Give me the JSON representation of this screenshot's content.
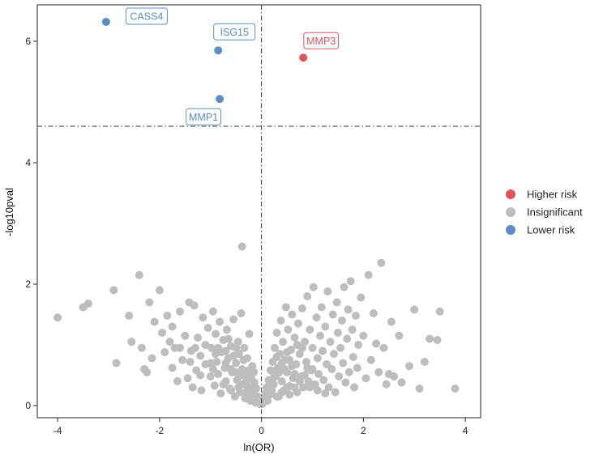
{
  "chart_data": {
    "type": "scatter",
    "title": "",
    "xlabel": "ln(OR)",
    "ylabel": "-log10pval",
    "xlim": [
      -4.4,
      4.3
    ],
    "ylim": [
      -0.2,
      6.6
    ],
    "xticks": [
      -4,
      -2,
      0,
      2,
      4
    ],
    "yticks": [
      0,
      2,
      4,
      6
    ],
    "grid": false,
    "thresholds": {
      "x": 0,
      "y": 4.6
    },
    "colors": {
      "higher": "#e0535c",
      "insignificant": "#bdbdbd",
      "lower": "#5b8ec4"
    },
    "legend": {
      "position": "right",
      "entries": [
        {
          "label": "Higher risk",
          "group": "higher"
        },
        {
          "label": "Insignificant",
          "group": "insignificant"
        },
        {
          "label": "Lower risk",
          "group": "lower"
        }
      ]
    },
    "significant_points": [
      {
        "label": "CASS4",
        "x": -3.05,
        "y": 6.32,
        "group": "lower"
      },
      {
        "label": "ISG15",
        "x": -0.85,
        "y": 5.85,
        "group": "lower"
      },
      {
        "label": "MMP1",
        "x": -0.82,
        "y": 5.05,
        "group": "lower"
      },
      {
        "label": "MMP3",
        "x": 0.82,
        "y": 5.73,
        "group": "higher"
      }
    ],
    "insignificant_points": [
      [
        -4.0,
        1.45
      ],
      [
        -3.5,
        1.62
      ],
      [
        -3.4,
        1.68
      ],
      [
        -2.9,
        1.9
      ],
      [
        -2.85,
        0.7
      ],
      [
        -2.6,
        1.48
      ],
      [
        -2.55,
        1.05
      ],
      [
        -2.4,
        2.15
      ],
      [
        -2.35,
        0.95
      ],
      [
        -2.3,
        0.6
      ],
      [
        -2.25,
        0.55
      ],
      [
        -2.2,
        1.7
      ],
      [
        -2.15,
        0.78
      ],
      [
        -2.1,
        1.38
      ],
      [
        -2.0,
        1.9
      ],
      [
        -1.95,
        1.2
      ],
      [
        -1.9,
        0.88
      ],
      [
        -1.85,
        1.48
      ],
      [
        -1.8,
        1.05
      ],
      [
        -1.75,
        0.62
      ],
      [
        -1.7,
        0.95
      ],
      [
        -1.65,
        0.4
      ],
      [
        -1.6,
        1.55
      ],
      [
        -1.55,
        0.75
      ],
      [
        -1.5,
        1.15
      ],
      [
        -1.45,
        0.45
      ],
      [
        -1.42,
        1.7
      ],
      [
        -1.38,
        0.9
      ],
      [
        -1.35,
        0.3
      ],
      [
        -1.32,
        1.65
      ],
      [
        -1.28,
        0.58
      ],
      [
        -1.25,
        1.12
      ],
      [
        -1.2,
        0.82
      ],
      [
        -1.18,
        0.25
      ],
      [
        -1.15,
        1.45
      ],
      [
        -1.1,
        0.68
      ],
      [
        -1.05,
        1.28
      ],
      [
        -1.0,
        0.48
      ],
      [
        -0.98,
        0.95
      ],
      [
        -0.95,
        1.55
      ],
      [
        -0.92,
        0.33
      ],
      [
        -0.9,
        1.18
      ],
      [
        -0.88,
        0.72
      ],
      [
        -0.85,
        0.52
      ],
      [
        -0.82,
        1.38
      ],
      [
        -0.8,
        0.2
      ],
      [
        -0.78,
        0.88
      ],
      [
        -0.75,
        1.08
      ],
      [
        -0.72,
        0.62
      ],
      [
        -0.7,
        0.4
      ],
      [
        -0.68,
        1.25
      ],
      [
        -0.65,
        0.78
      ],
      [
        -0.62,
        0.28
      ],
      [
        -0.6,
        0.98
      ],
      [
        -0.58,
        0.55
      ],
      [
        -0.55,
        1.42
      ],
      [
        -0.52,
        0.15
      ],
      [
        -0.5,
        0.7
      ],
      [
        -0.48,
        0.42
      ],
      [
        -0.46,
        1.05
      ],
      [
        -0.44,
        0.85
      ],
      [
        -0.42,
        0.22
      ],
      [
        -0.4,
        1.52
      ],
      [
        -0.38,
        0.6
      ],
      [
        -0.36,
        0.35
      ],
      [
        -0.34,
        0.95
      ],
      [
        -0.32,
        0.12
      ],
      [
        -0.3,
        0.5
      ],
      [
        -0.28,
        0.78
      ],
      [
        -0.26,
        0.3
      ],
      [
        -0.24,
        1.18
      ],
      [
        -0.22,
        0.08
      ],
      [
        -0.2,
        0.45
      ],
      [
        -0.18,
        0.65
      ],
      [
        -0.16,
        0.2
      ],
      [
        -0.14,
        0.38
      ],
      [
        -0.12,
        0.05
      ],
      [
        -0.1,
        0.28
      ],
      [
        -0.08,
        0.15
      ],
      [
        -0.06,
        0.1
      ],
      [
        -0.04,
        0.04
      ],
      [
        -0.38,
        2.62
      ],
      [
        -0.02,
        0.02
      ],
      [
        -1.3,
        0.95
      ],
      [
        -1.1,
        1.0
      ],
      [
        -0.9,
        0.85
      ],
      [
        -0.7,
        0.9
      ],
      [
        -0.55,
        0.82
      ],
      [
        -0.65,
        1.1
      ],
      [
        -0.75,
        0.35
      ],
      [
        -0.6,
        0.25
      ],
      [
        -0.45,
        0.3
      ],
      [
        -0.5,
        0.95
      ],
      [
        -0.35,
        0.75
      ],
      [
        -0.3,
        0.22
      ],
      [
        -0.25,
        0.58
      ],
      [
        -0.2,
        0.3
      ],
      [
        -1.0,
        0.7
      ],
      [
        -0.85,
        0.95
      ],
      [
        -0.95,
        0.6
      ],
      [
        -1.2,
        0.5
      ],
      [
        -1.4,
        0.72
      ],
      [
        -1.6,
        0.95
      ],
      [
        -1.75,
        1.3
      ],
      [
        -0.7,
        0.7
      ],
      [
        -0.6,
        0.6
      ],
      [
        -0.5,
        0.55
      ],
      [
        -0.4,
        0.5
      ],
      [
        -0.3,
        0.4
      ],
      [
        -0.2,
        0.18
      ],
      [
        -0.15,
        0.55
      ],
      [
        0.02,
        0.03
      ],
      [
        0.04,
        0.06
      ],
      [
        0.06,
        0.12
      ],
      [
        0.08,
        0.2
      ],
      [
        0.1,
        0.3
      ],
      [
        0.12,
        0.08
      ],
      [
        0.14,
        0.42
      ],
      [
        0.16,
        0.18
      ],
      [
        0.18,
        0.58
      ],
      [
        0.2,
        0.25
      ],
      [
        0.22,
        0.72
      ],
      [
        0.24,
        0.35
      ],
      [
        0.26,
        0.95
      ],
      [
        0.28,
        0.48
      ],
      [
        0.3,
        1.2
      ],
      [
        0.32,
        0.62
      ],
      [
        0.34,
        0.15
      ],
      [
        0.36,
        0.85
      ],
      [
        0.38,
        1.4
      ],
      [
        0.4,
        0.4
      ],
      [
        0.42,
        1.05
      ],
      [
        0.44,
        0.25
      ],
      [
        0.46,
        0.75
      ],
      [
        0.48,
        1.62
      ],
      [
        0.5,
        0.55
      ],
      [
        0.52,
        1.25
      ],
      [
        0.55,
        0.32
      ],
      [
        0.58,
        0.92
      ],
      [
        0.6,
        1.5
      ],
      [
        0.62,
        0.45
      ],
      [
        0.65,
        1.12
      ],
      [
        0.68,
        0.68
      ],
      [
        0.7,
        0.22
      ],
      [
        0.72,
        1.35
      ],
      [
        0.75,
        0.85
      ],
      [
        0.78,
        0.48
      ],
      [
        0.8,
        1.6
      ],
      [
        0.82,
        0.3
      ],
      [
        0.85,
        1.05
      ],
      [
        0.88,
        0.72
      ],
      [
        0.9,
        1.8
      ],
      [
        0.92,
        0.4
      ],
      [
        0.95,
        1.25
      ],
      [
        0.98,
        0.58
      ],
      [
        1.0,
        0.95
      ],
      [
        1.02,
        1.95
      ],
      [
        1.05,
        0.35
      ],
      [
        1.08,
        1.45
      ],
      [
        1.1,
        0.78
      ],
      [
        1.12,
        0.52
      ],
      [
        1.15,
        1.15
      ],
      [
        1.18,
        1.62
      ],
      [
        1.2,
        0.9
      ],
      [
        1.22,
        0.42
      ],
      [
        1.25,
        1.3
      ],
      [
        1.28,
        0.68
      ],
      [
        1.3,
        1.88
      ],
      [
        1.32,
        0.3
      ],
      [
        1.35,
        1.05
      ],
      [
        1.38,
        0.6
      ],
      [
        1.4,
        1.5
      ],
      [
        1.42,
        0.85
      ],
      [
        1.45,
        0.22
      ],
      [
        1.48,
        1.7
      ],
      [
        1.5,
        1.2
      ],
      [
        1.52,
        0.48
      ],
      [
        1.55,
        0.95
      ],
      [
        1.58,
        1.4
      ],
      [
        1.6,
        0.7
      ],
      [
        1.62,
        1.95
      ],
      [
        1.65,
        0.38
      ],
      [
        1.68,
        1.1
      ],
      [
        1.7,
        1.58
      ],
      [
        1.72,
        0.55
      ],
      [
        1.75,
        2.05
      ],
      [
        1.78,
        1.25
      ],
      [
        1.8,
        0.8
      ],
      [
        1.82,
        0.3
      ],
      [
        1.85,
        1.48
      ],
      [
        1.88,
        0.62
      ],
      [
        1.9,
        1.0
      ],
      [
        1.95,
        1.78
      ],
      [
        2.0,
        1.15
      ],
      [
        2.05,
        0.45
      ],
      [
        2.1,
        2.15
      ],
      [
        2.15,
        0.75
      ],
      [
        2.2,
        1.52
      ],
      [
        2.25,
        1.02
      ],
      [
        2.3,
        0.55
      ],
      [
        2.35,
        2.35
      ],
      [
        2.4,
        0.95
      ],
      [
        2.5,
        0.52
      ],
      [
        2.55,
        1.38
      ],
      [
        2.6,
        0.48
      ],
      [
        2.7,
        1.15
      ],
      [
        2.75,
        0.38
      ],
      [
        3.0,
        1.58
      ],
      [
        3.1,
        0.28
      ],
      [
        3.2,
        0.72
      ],
      [
        3.3,
        1.1
      ],
      [
        3.5,
        1.55
      ],
      [
        3.45,
        1.08
      ],
      [
        3.8,
        0.28
      ],
      [
        2.45,
        0.35
      ],
      [
        2.9,
        0.65
      ],
      [
        0.35,
        0.55
      ],
      [
        0.45,
        0.6
      ],
      [
        0.55,
        0.75
      ],
      [
        0.65,
        0.52
      ],
      [
        0.75,
        0.4
      ],
      [
        0.5,
        0.88
      ],
      [
        0.4,
        0.7
      ],
      [
        0.3,
        0.8
      ],
      [
        0.25,
        0.5
      ],
      [
        0.6,
        0.65
      ],
      [
        0.7,
        1.0
      ],
      [
        0.85,
        0.5
      ],
      [
        0.95,
        0.3
      ],
      [
        1.1,
        0.25
      ],
      [
        1.25,
        0.2
      ],
      [
        0.2,
        0.4
      ],
      [
        0.15,
        0.28
      ],
      [
        0.3,
        0.15
      ],
      [
        0.55,
        0.18
      ],
      [
        0.8,
        0.95
      ],
      [
        1.0,
        0.6
      ],
      [
        0.5,
        0.3
      ],
      [
        0.4,
        0.22
      ],
      [
        0.65,
        0.3
      ],
      [
        0.9,
        0.62
      ]
    ]
  }
}
